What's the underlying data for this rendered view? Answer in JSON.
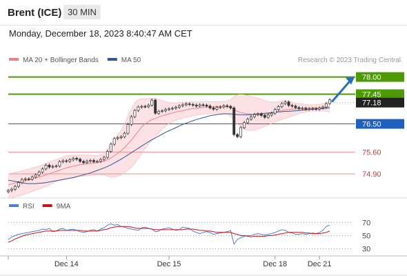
{
  "header": {
    "instrument": "Brent (ICE)",
    "timeframe": "30 MIN",
    "timestamp": "Monday, December 18, 2023 8:40:47 AM CET"
  },
  "chart_data": {
    "type": "line",
    "legend": [
      {
        "label": "MA 20 + Bollinger Bands",
        "color": "#f08080"
      },
      {
        "label": "MA 50",
        "color": "#2f5597"
      }
    ],
    "credit": "Research © 2023 Trading Central",
    "price_axis": {
      "ylim": [
        74.15,
        78.3
      ]
    },
    "levels": [
      {
        "value": 78.0,
        "label": "78.00",
        "color": "#4e9a06",
        "style": "box"
      },
      {
        "value": 77.45,
        "label": "77.45",
        "color": "#4e9a06",
        "style": "box"
      },
      {
        "value": 77.18,
        "label": "77.18",
        "color": "#222222",
        "style": "box"
      },
      {
        "value": 76.5,
        "label": "76.50",
        "color": "#1f5fbf",
        "style": "box"
      },
      {
        "value": 75.6,
        "label": "75.60",
        "color": "#e03030",
        "style": "text"
      },
      {
        "value": 74.9,
        "label": "74.90",
        "color": "#e03030",
        "style": "text"
      }
    ],
    "close": [
      74.37,
      74.41,
      74.5,
      74.62,
      74.72,
      74.74,
      74.73,
      74.8,
      74.87,
      74.96,
      75.06,
      75.18,
      75.12,
      75.14,
      75.15,
      75.29,
      75.32,
      75.3,
      75.35,
      75.4,
      75.37,
      75.3,
      75.26,
      75.31,
      75.33,
      75.29,
      75.3,
      75.36,
      75.43,
      75.62,
      75.85,
      76.03,
      76.06,
      76.09,
      76.2,
      76.48,
      76.73,
      76.93,
      77.04,
      77.06,
      77.05,
      77.1,
      77.26,
      76.84,
      76.9,
      76.92,
      76.96,
      76.98,
      77.0,
      77.03,
      77.08,
      77.11,
      77.14,
      77.12,
      77.1,
      77.07,
      77.11,
      77.1,
      77.07,
      77.01,
      76.97,
      77.03,
      77.04,
      77.08,
      77.06,
      77.01,
      76.16,
      76.09,
      76.38,
      76.54,
      76.65,
      76.73,
      76.8,
      76.82,
      76.77,
      76.71,
      76.78,
      76.84,
      76.96,
      77.05,
      77.15,
      77.2,
      77.09,
      77.07,
      77.02,
      76.99,
      77.0,
      76.97,
      76.98,
      76.99,
      76.97,
      77.01,
      77.04,
      77.15,
      77.27
    ],
    "ma20": [
      74.55,
      74.58,
      74.61,
      74.63,
      74.65,
      74.68,
      74.71,
      74.74,
      74.77,
      74.8,
      74.83,
      74.87,
      74.91,
      74.94,
      74.98,
      75.02,
      75.06,
      75.09,
      75.12,
      75.15,
      75.17,
      75.19,
      75.21,
      75.23,
      75.24,
      75.25,
      75.27,
      75.28,
      75.3,
      75.35,
      75.41,
      75.48,
      75.56,
      75.64,
      75.74,
      75.86,
      75.98,
      76.12,
      76.26,
      76.4,
      76.5,
      76.57,
      76.64,
      76.67,
      76.72,
      76.76,
      76.79,
      76.82,
      76.85,
      76.88,
      76.9,
      76.92,
      76.95,
      76.97,
      76.99,
      77.0,
      77.02,
      77.03,
      77.04,
      77.04,
      77.05,
      77.05,
      77.06,
      77.06,
      77.05,
      77.03,
      76.97,
      76.9,
      76.86,
      76.84,
      76.82,
      76.81,
      76.8,
      76.79,
      76.79,
      76.8,
      76.82,
      76.85,
      76.88,
      76.91,
      76.93,
      76.95,
      76.96,
      76.97,
      76.98,
      76.99,
      77.0,
      77.0,
      77.01,
      77.01,
      77.01,
      77.01,
      77.02,
      77.03,
      77.05
    ],
    "bb_upper": [
      74.9,
      74.92,
      74.95,
      74.97,
      75.0,
      75.03,
      75.06,
      75.09,
      75.12,
      75.15,
      75.19,
      75.23,
      75.28,
      75.32,
      75.36,
      75.4,
      75.44,
      75.47,
      75.49,
      75.5,
      75.5,
      75.5,
      75.5,
      75.5,
      75.5,
      75.49,
      75.48,
      75.5,
      75.56,
      75.69,
      75.85,
      76.0,
      76.14,
      76.3,
      76.5,
      76.75,
      76.98,
      77.17,
      77.28,
      77.3,
      77.3,
      77.31,
      77.31,
      77.31,
      77.28,
      77.24,
      77.2,
      77.18,
      77.17,
      77.17,
      77.18,
      77.18,
      77.19,
      77.2,
      77.2,
      77.2,
      77.2,
      77.21,
      77.21,
      77.21,
      77.21,
      77.21,
      77.21,
      77.22,
      77.22,
      77.28,
      77.37,
      77.43,
      77.44,
      77.43,
      77.41,
      77.38,
      77.35,
      77.32,
      77.29,
      77.25,
      77.21,
      77.2,
      77.2,
      77.21,
      77.23,
      77.25,
      77.23,
      77.2,
      77.17,
      77.15,
      77.14,
      77.12,
      77.11,
      77.11,
      77.12,
      77.13,
      77.15,
      77.18,
      77.23
    ],
    "bb_lower": [
      74.12,
      74.14,
      74.16,
      74.19,
      74.22,
      74.26,
      74.3,
      74.34,
      74.38,
      74.42,
      74.46,
      74.5,
      74.55,
      74.6,
      74.66,
      74.7,
      74.74,
      74.77,
      74.79,
      74.8,
      74.81,
      74.82,
      74.83,
      74.84,
      74.85,
      74.86,
      74.87,
      74.87,
      74.86,
      74.83,
      74.8,
      74.8,
      74.83,
      74.87,
      74.94,
      75.02,
      75.11,
      75.24,
      75.39,
      75.55,
      75.72,
      75.85,
      75.97,
      76.09,
      76.21,
      76.33,
      76.43,
      76.51,
      76.57,
      76.62,
      76.65,
      76.68,
      76.71,
      76.73,
      76.76,
      76.78,
      76.8,
      76.81,
      76.82,
      76.83,
      76.84,
      76.84,
      76.84,
      76.84,
      76.82,
      76.74,
      76.62,
      76.5,
      76.41,
      76.35,
      76.3,
      76.3,
      76.3,
      76.33,
      76.37,
      76.42,
      76.47,
      76.51,
      76.56,
      76.6,
      76.64,
      76.67,
      76.71,
      76.75,
      76.79,
      76.83,
      76.86,
      76.88,
      76.9,
      76.91,
      76.91,
      76.91,
      76.91,
      76.9,
      76.88
    ],
    "ma50": [
      74.7,
      74.68,
      74.66,
      74.64,
      74.62,
      74.6,
      74.59,
      74.59,
      74.59,
      74.6,
      74.61,
      74.62,
      74.64,
      74.66,
      74.68,
      74.7,
      74.72,
      74.74,
      74.76,
      74.78,
      74.81,
      74.84,
      74.87,
      74.9,
      74.93,
      74.97,
      75.01,
      75.05,
      75.09,
      75.14,
      75.19,
      75.25,
      75.31,
      75.37,
      75.44,
      75.51,
      75.58,
      75.65,
      75.72,
      75.79,
      75.86,
      75.93,
      75.99,
      76.05,
      76.11,
      76.17,
      76.23,
      76.28,
      76.33,
      76.38,
      76.43,
      76.48,
      76.52,
      76.56,
      76.6,
      76.64,
      76.67,
      76.7,
      76.73,
      76.76,
      76.78,
      76.8,
      76.81,
      76.82,
      76.82,
      76.82,
      76.81,
      76.8,
      76.79,
      76.79,
      76.79,
      76.8,
      76.81,
      76.82,
      76.83,
      76.84,
      76.85,
      76.86,
      76.87,
      76.88,
      76.89,
      76.9,
      76.9,
      76.91,
      76.92,
      76.93,
      76.94,
      76.95,
      76.96,
      76.97,
      76.97,
      76.98,
      76.99,
      77.0,
      77.01
    ],
    "rsi_panel": {
      "legend": [
        {
          "label": "RSI",
          "color": "#4a7dd6"
        },
        {
          "label": "9MA",
          "color": "#cc1111"
        }
      ],
      "ylim": [
        20,
        80
      ],
      "ticks": [
        70,
        50,
        30
      ],
      "rsi": [
        44,
        48,
        50,
        52,
        53,
        54,
        55,
        56,
        57,
        58,
        60,
        59,
        61,
        56,
        57,
        60,
        61,
        58,
        59,
        60,
        58,
        56,
        55,
        56,
        58,
        59,
        57,
        60,
        62,
        66,
        68,
        66,
        67,
        64,
        63,
        61,
        60,
        59,
        58,
        62,
        63,
        61,
        60,
        56,
        57,
        60,
        61,
        62,
        60,
        58,
        59,
        63,
        62,
        61,
        57,
        55,
        53,
        55,
        56,
        55,
        52,
        53,
        54,
        55,
        56,
        58,
        37,
        44,
        47,
        49,
        50,
        50,
        52,
        53,
        52,
        51,
        52,
        53,
        55,
        57,
        59,
        58,
        55,
        54,
        52,
        52,
        53,
        52,
        53,
        54,
        53,
        55,
        58,
        64,
        66
      ],
      "ma9": [
        40,
        42,
        45,
        47,
        49,
        51,
        52,
        53,
        54,
        55,
        56,
        57,
        57,
        57,
        57,
        58,
        58,
        58,
        58,
        58,
        58,
        58,
        57,
        57,
        57,
        57,
        57,
        58,
        59,
        60,
        62,
        63,
        64,
        64,
        64,
        64,
        63,
        62,
        61,
        61,
        61,
        61,
        60,
        59,
        59,
        59,
        59,
        59,
        59,
        59,
        59,
        59,
        60,
        60,
        60,
        59,
        58,
        58,
        57,
        57,
        56,
        55,
        55,
        55,
        55,
        55,
        53,
        52,
        50,
        50,
        49,
        48,
        49,
        49,
        49,
        49,
        50,
        50,
        51,
        52,
        53,
        54,
        55,
        55,
        55,
        55,
        55,
        54,
        54,
        53,
        53,
        53,
        54,
        55,
        57
      ]
    },
    "x_axis": {
      "ticks": [
        {
          "label": "Dec 14",
          "index": 17
        },
        {
          "label": "Dec 15",
          "index": 47
        },
        {
          "label": "Dec 18",
          "index": 78
        },
        {
          "label": "Dec 21",
          "index": 91
        }
      ]
    }
  }
}
